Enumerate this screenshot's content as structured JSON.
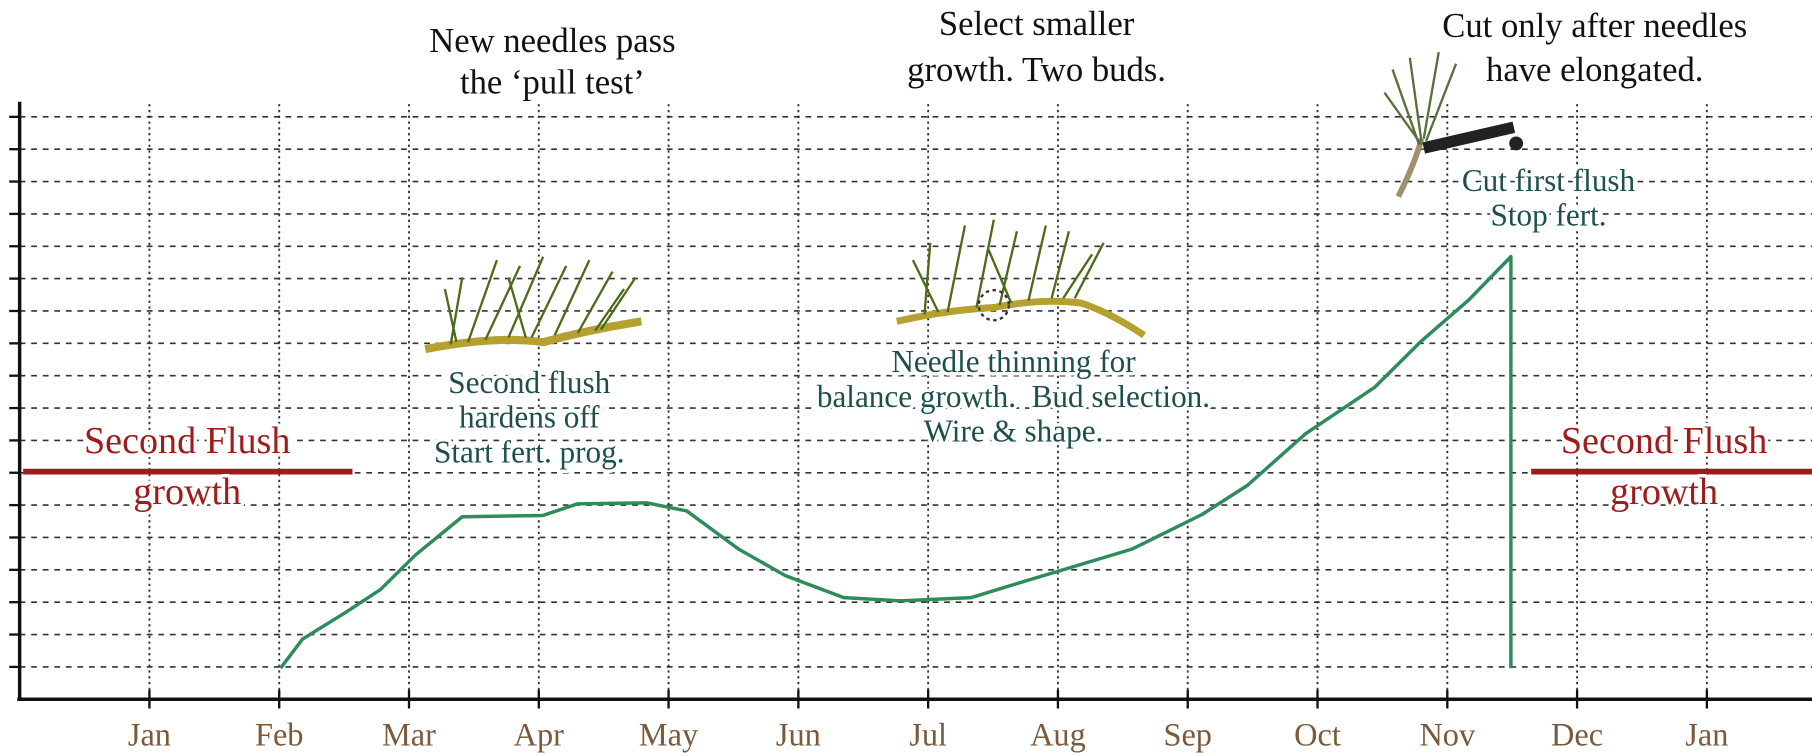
{
  "chart_data": {
    "type": "line",
    "x": [
      1.01,
      1.18,
      1.51,
      1.78,
      2.05,
      2.41,
      3.03,
      3.3,
      3.83,
      4.14,
      4.54,
      4.9,
      5.35,
      5.79,
      6.33,
      6.68,
      7.13,
      7.57,
      8.11,
      8.46,
      8.91,
      9.44,
      9.8,
      10.16,
      10.49,
      10.49
    ],
    "series": [
      {
        "color": "#2e8b5a",
        "values": [
          0.96,
          1.86,
          2.68,
          3.39,
          4.46,
          5.64,
          5.68,
          6.04,
          6.07,
          5.82,
          4.64,
          3.82,
          3.14,
          3.04,
          3.14,
          3.57,
          4.11,
          4.64,
          5.71,
          6.61,
          8.21,
          9.64,
          11.07,
          12.32,
          13.68,
          0.96
        ]
      }
    ],
    "xlim": [
      -1,
      12.81
    ],
    "xticks": [
      {
        "value": 0,
        "label": "Jan"
      },
      {
        "value": 1,
        "label": "Feb"
      },
      {
        "value": 2,
        "label": "Mar"
      },
      {
        "value": 3,
        "label": "Apr"
      },
      {
        "value": 4,
        "label": "May"
      },
      {
        "value": 5,
        "label": "Jun"
      },
      {
        "value": 6,
        "label": "Jul"
      },
      {
        "value": 7,
        "label": "Aug"
      },
      {
        "value": 8,
        "label": "Sep"
      },
      {
        "value": 9,
        "label": "Oct"
      },
      {
        "value": 10,
        "label": "Nov"
      },
      {
        "value": 11,
        "label": "Dec"
      },
      {
        "value": 12,
        "label": "Jan"
      }
    ],
    "ylim": [
      0,
      18.5
    ],
    "yticks": [
      1,
      2,
      3,
      4,
      5,
      6,
      7,
      8,
      9,
      10,
      11,
      12,
      13,
      14,
      15,
      16,
      17,
      18
    ],
    "grid": true,
    "annotations": [
      {
        "text": [
          "New needles pass",
          "the ‘pull test’"
        ],
        "color": "#111111"
      },
      {
        "text": [
          "Select smaller",
          "growth. Two buds."
        ],
        "color": "#111111"
      },
      {
        "text": [
          "Cut only after needles",
          "have elongated."
        ],
        "color": "#111111"
      },
      {
        "text": [
          "Second flush",
          "hardens off",
          "Start fert. prog."
        ],
        "color": "#1d4f4c"
      },
      {
        "text": [
          "Needle thinning for",
          "balance growth.  Bud selection.",
          "Wire & shape."
        ],
        "color": "#1d4f4c"
      },
      {
        "text": [
          "Cut first flush",
          "Stop fert."
        ],
        "color": "#1d4f4c"
      },
      {
        "text": [
          "Second Flush",
          "growth"
        ],
        "color": "#a01c1c"
      },
      {
        "text": [
          "Second Flush",
          "growth"
        ],
        "color": "#a01c1c"
      }
    ]
  }
}
